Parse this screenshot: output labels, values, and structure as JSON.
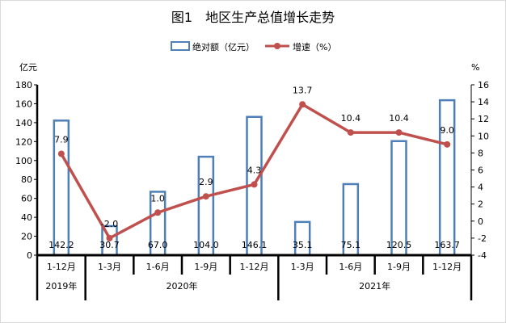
{
  "chart_data": {
    "type": "bar+line",
    "title": "图1　地区生产总值增长走势",
    "categories": [
      "1-12月",
      "1-3月",
      "1-6月",
      "1-9月",
      "1-12月",
      "1-3月",
      "1-6月",
      "1-9月",
      "1-12月"
    ],
    "groups": [
      {
        "label": "2019年",
        "count": 1
      },
      {
        "label": "2020年",
        "count": 4
      },
      {
        "label": "2021年",
        "count": 4
      }
    ],
    "series": [
      {
        "name": "绝对额（亿元）",
        "type": "bar",
        "axis": "left",
        "color": "#4f7fb8",
        "values": [
          142.2,
          30.7,
          67.0,
          104.0,
          146.1,
          35.1,
          75.1,
          120.5,
          163.7
        ],
        "labels": [
          "142.2",
          "30.7",
          "67.0",
          "104.0",
          "146.1",
          "35.1",
          "75.1",
          "120.5",
          "163.7"
        ]
      },
      {
        "name": "增速（%）",
        "type": "line",
        "axis": "right",
        "color": "#c0504d",
        "values": [
          7.9,
          -2.0,
          1.0,
          2.9,
          4.3,
          13.7,
          10.4,
          10.4,
          9.0
        ],
        "labels": [
          "7.9",
          "-2.0",
          "1.0",
          "2.9",
          "4.3",
          "13.7",
          "10.4",
          "10.4",
          "9.0"
        ]
      }
    ],
    "yleft": {
      "label": "亿元",
      "ylim": [
        0,
        180
      ],
      "ticks": [
        0,
        20,
        40,
        60,
        80,
        100,
        120,
        140,
        160,
        180
      ]
    },
    "yright": {
      "label": "%",
      "ylim": [
        -4,
        16
      ],
      "ticks": [
        -4,
        -2,
        0,
        2,
        4,
        6,
        8,
        10,
        12,
        14,
        16
      ]
    },
    "legend": "top-center",
    "grid": false
  }
}
